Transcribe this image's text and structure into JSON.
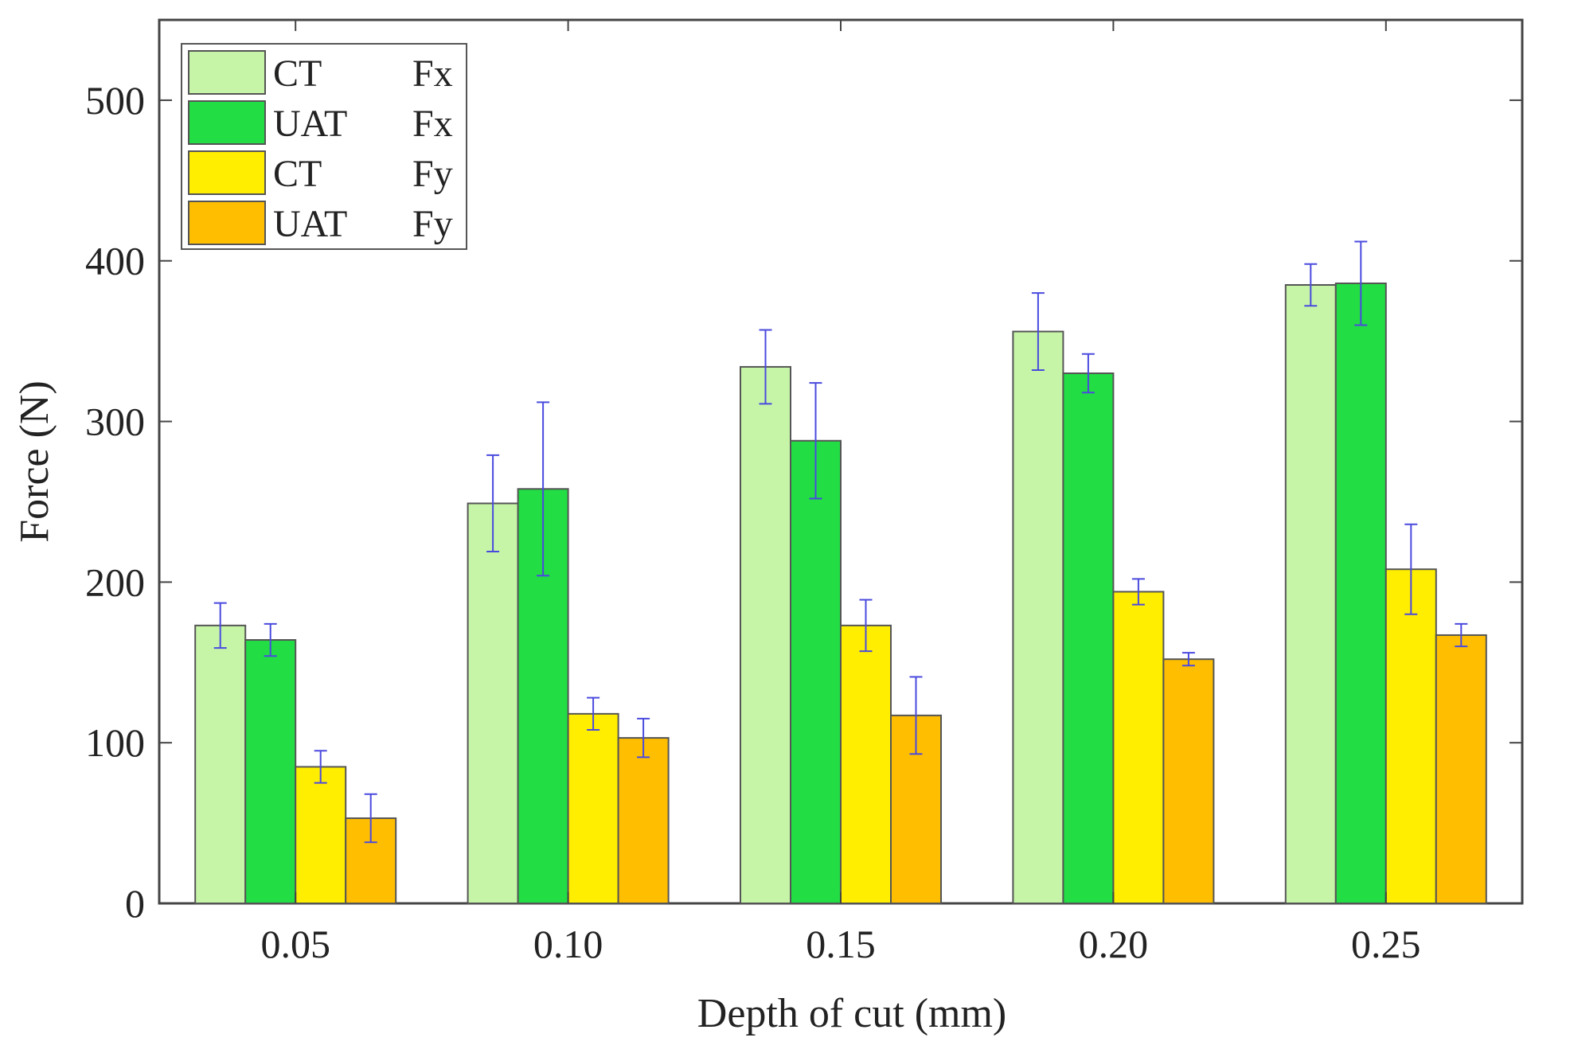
{
  "chart_data": {
    "type": "bar",
    "title": "",
    "xlabel": "Depth of cut (mm)",
    "ylabel": "Force (N)",
    "ylim": [
      0,
      550
    ],
    "yticks": [
      0,
      100,
      200,
      300,
      400,
      500
    ],
    "categories": [
      "0.05",
      "0.10",
      "0.15",
      "0.20",
      "0.25"
    ],
    "series": [
      {
        "name": "CT Fx",
        "legend_method": "CT",
        "legend_component": "Fx",
        "color": "#c6f5a8",
        "values": [
          173,
          249,
          334,
          356,
          385
        ],
        "errors": [
          14,
          30,
          23,
          24,
          13
        ]
      },
      {
        "name": "UAT Fx",
        "legend_method": "UAT",
        "legend_component": "Fx",
        "color": "#22dd44",
        "values": [
          164,
          258,
          288,
          330,
          386
        ],
        "errors": [
          10,
          54,
          36,
          12,
          26
        ]
      },
      {
        "name": "CT Fy",
        "legend_method": "CT",
        "legend_component": "Fy",
        "color": "#ffee00",
        "values": [
          85,
          118,
          173,
          194,
          208
        ],
        "errors": [
          10,
          10,
          16,
          8,
          28
        ]
      },
      {
        "name": "UAT Fy",
        "legend_method": "UAT",
        "legend_component": "Fy",
        "color": "#ffbf00",
        "values": [
          53,
          103,
          117,
          152,
          167
        ],
        "errors": [
          15,
          12,
          24,
          4,
          7
        ]
      }
    ],
    "error_bar_color": "#4a4adf",
    "legend_position": "top-left",
    "grid": false
  }
}
